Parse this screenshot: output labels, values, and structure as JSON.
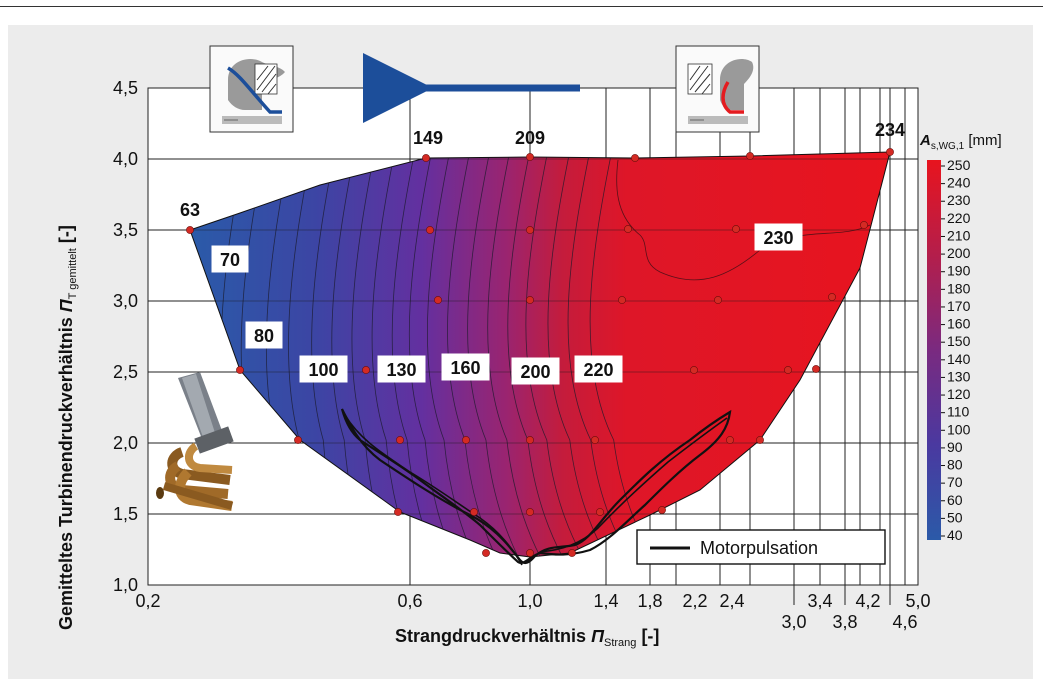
{
  "chart_data": {
    "type": "heatmap",
    "xlabel_main": "Strangdruckverhältnis",
    "xlabel_symbol": "Π",
    "xlabel_sub": "Strang",
    "xlabel_unit": "[-]",
    "ylabel_main": "Gemitteltes Turbinendruckverhältnis",
    "ylabel_symbol": "Π",
    "ylabel_sub": "T gemittelt",
    "ylabel_unit": "[-]",
    "x_ticks": [
      "0,2",
      "0,6",
      "1,0",
      "1,4",
      "1,8",
      "2,2",
      "2,4",
      "4,2",
      "5,0"
    ],
    "x_ticks_lower": [
      "3,0",
      "3,8",
      "4,6"
    ],
    "x_ticks_mid": [
      "3,4"
    ],
    "y_ticks": [
      "1,0",
      "1,5",
      "2,0",
      "2,5",
      "3,0",
      "3,5",
      "4,0",
      "4,5"
    ],
    "ylim": [
      1.0,
      4.5
    ],
    "colorbar": {
      "title_symbol": "A",
      "title_sub": "s,WG,1",
      "title_unit": "[mm]",
      "ticks": [
        "250",
        "240",
        "230",
        "220",
        "210",
        "200",
        "190",
        "180",
        "170",
        "160",
        "150",
        "140",
        "130",
        "120",
        "110",
        "100",
        "90",
        "80",
        "70",
        "60",
        "50",
        "40"
      ],
      "colors": [
        "#e8141e",
        "#b41e4b",
        "#7a2a80",
        "#4a39a0",
        "#2b5aa8"
      ]
    },
    "contour_labels": [
      "70",
      "80",
      "100",
      "130",
      "160",
      "200",
      "220",
      "230"
    ],
    "corner_values": [
      {
        "label": "63",
        "x": 0.28,
        "y": 3.5
      },
      {
        "label": "149",
        "x": 0.64,
        "y": 4.0
      },
      {
        "label": "209",
        "x": 1.0,
        "y": 4.0
      },
      {
        "label": "234",
        "x": 4.5,
        "y": 4.03
      }
    ],
    "legend": "Motorpulsation",
    "colors": {
      "arrow": "#1c4e9a",
      "line": "#111111",
      "point": "#d42a24"
    }
  }
}
